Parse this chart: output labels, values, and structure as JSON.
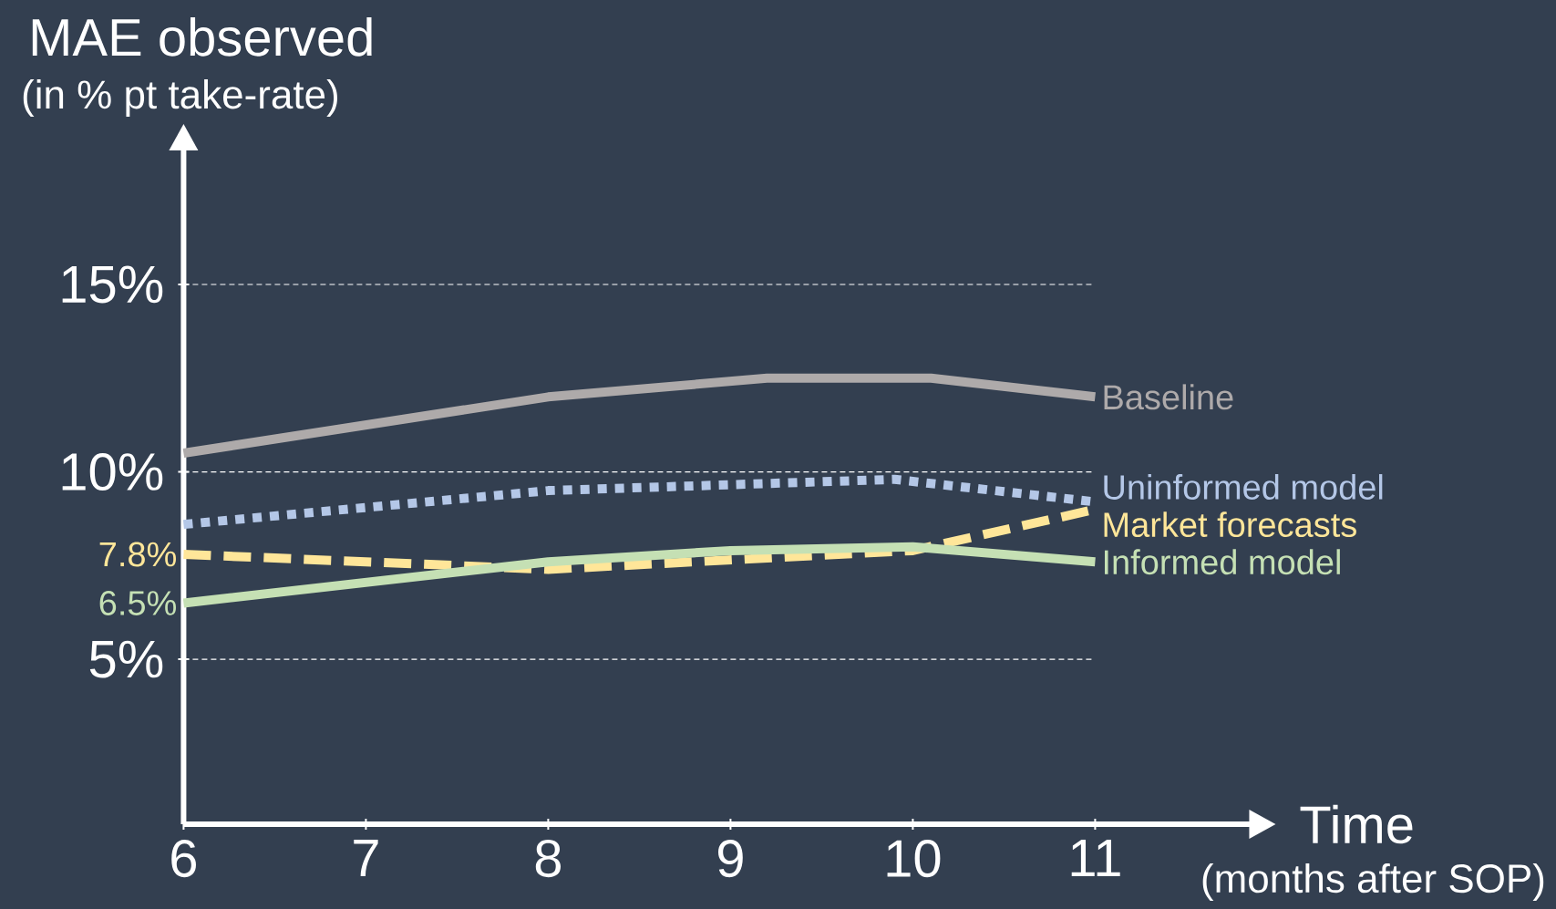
{
  "chart_data": {
    "type": "line",
    "title": "MAE observed",
    "subtitle": "(in % pt take-rate)",
    "xlabel": "Time",
    "annotations": [
      "(months after SOP)"
    ],
    "xlim": [
      6,
      11.85
    ],
    "ylim": [
      0.6,
      18.6
    ],
    "xticks": [
      6,
      7,
      8,
      9,
      10,
      11
    ],
    "yticks": [
      {
        "value": 5,
        "label": "5%"
      },
      {
        "value": 10,
        "label": "10%"
      },
      {
        "value": 15,
        "label": "15%"
      }
    ],
    "grid": "y",
    "series": [
      {
        "name": "Baseline",
        "color": "#aeaaaa",
        "line_style": "solid",
        "x": [
          6,
          8,
          9.2,
          10.1,
          11
        ],
        "values": [
          10.5,
          12.0,
          12.5,
          12.5,
          12.0
        ]
      },
      {
        "name": "Uninformed model",
        "color": "#b4c7e7",
        "line_style": "dotted",
        "x": [
          6,
          8,
          9.9,
          11
        ],
        "values": [
          8.6,
          9.5,
          9.8,
          9.2
        ]
      },
      {
        "name": "Market forecasts",
        "color": "#ffe699",
        "line_style": "dashed",
        "x": [
          6,
          8,
          10,
          11
        ],
        "values": [
          7.8,
          7.4,
          7.9,
          9.0
        ],
        "value_labels": [
          "7.8%",
          null,
          null,
          null
        ]
      },
      {
        "name": "Informed model",
        "color": "#c5e0b4",
        "line_style": "solid",
        "x": [
          6,
          8,
          9,
          10,
          11
        ],
        "values": [
          6.5,
          7.6,
          7.9,
          8.0,
          7.6
        ],
        "value_labels": [
          "6.5%",
          null,
          null,
          null,
          null
        ]
      }
    ]
  }
}
